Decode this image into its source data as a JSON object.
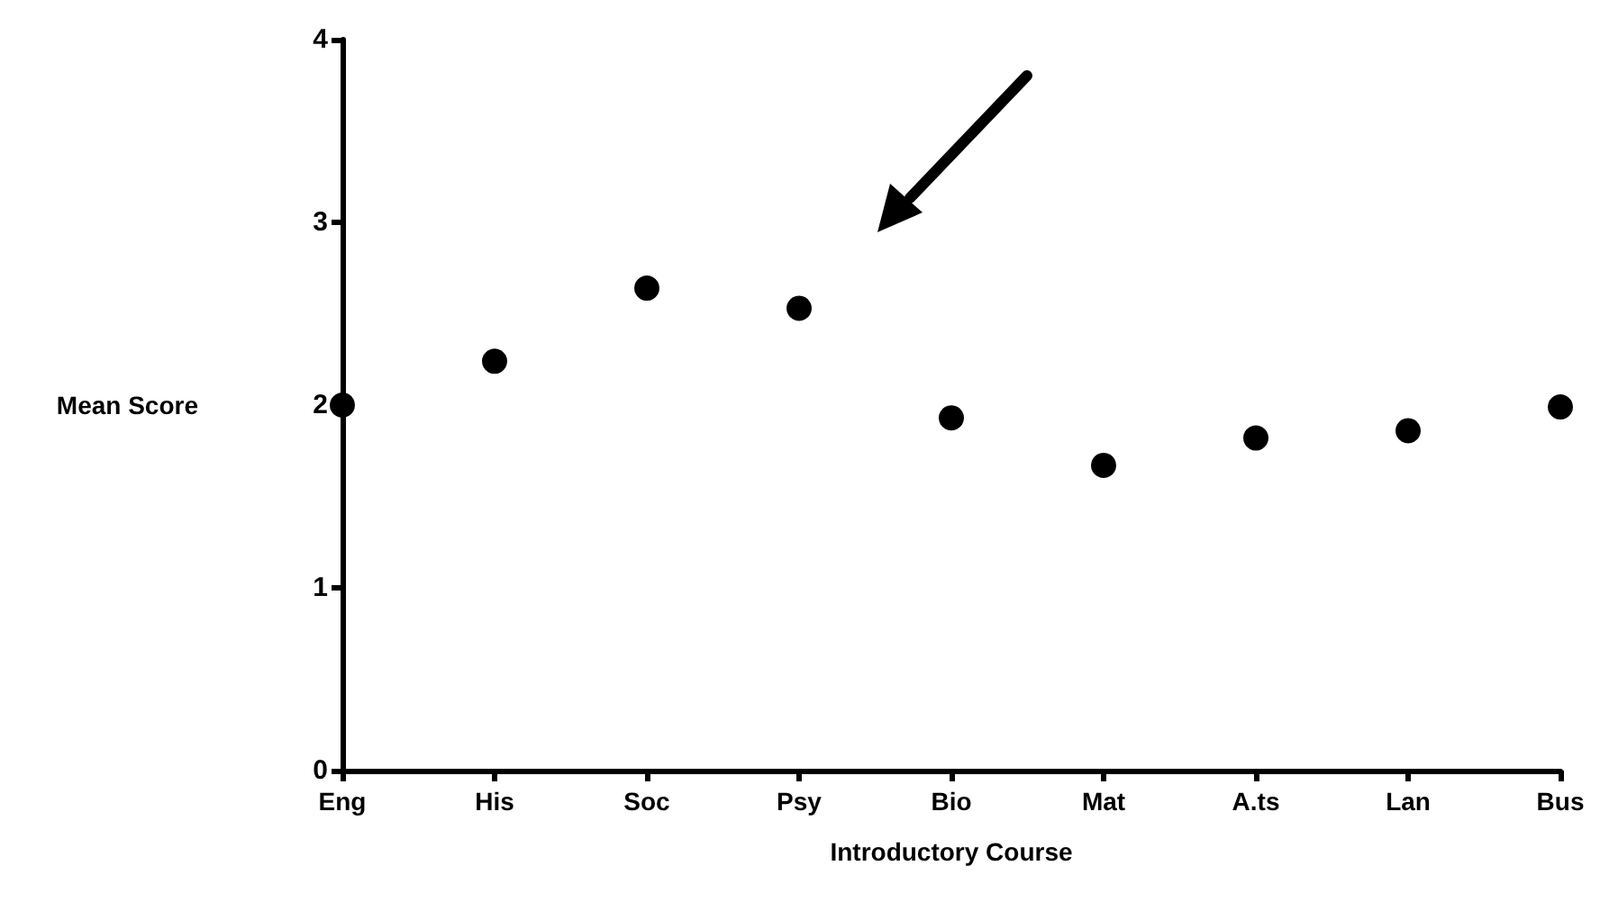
{
  "chart_data": {
    "type": "scatter",
    "xlabel": "Introductory Course",
    "ylabel": "Mean Score",
    "categories": [
      "Eng",
      "His",
      "Soc",
      "Psy",
      "Bio",
      "Mat",
      "A.ts",
      "Lan",
      "Bus"
    ],
    "series": [
      {
        "color": "#000000",
        "values": [
          2.0,
          2.24,
          2.64,
          2.53,
          1.93,
          1.67,
          1.82,
          1.86,
          1.99
        ]
      }
    ],
    "ylim": [
      0,
      4
    ],
    "yticks": [
      0,
      1,
      2,
      3,
      4
    ],
    "marker": "circle",
    "grid": false
  }
}
